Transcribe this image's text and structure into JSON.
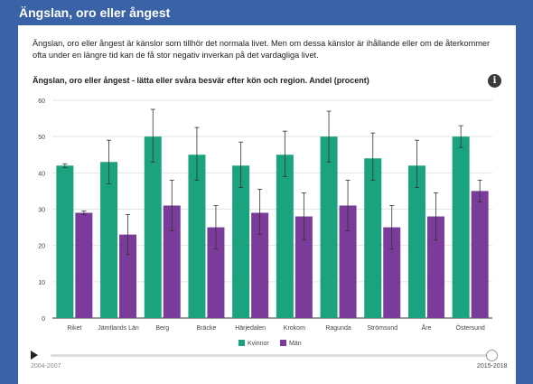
{
  "page": {
    "title": "Ängslan, oro eller ångest",
    "intro": "Ängslan, oro eller ångest är känslor som tillhör det normala livet. Men om dessa känslor är ihållande eller om de återkommer ofta under en längre tid kan de få stor negativ inverkan på det vardagliga livet."
  },
  "info_icon": "info-icon",
  "timeline": {
    "start_label": "2004-2007",
    "end_label": "2015-2018",
    "position": 1.0
  },
  "colors": {
    "kvinnor": "#1aa37e",
    "man": "#7b3b9a"
  },
  "chart_data": {
    "type": "bar",
    "title": "Ängslan, oro eller ångest - lätta eller svåra besvär efter kön och region. Andel (procent)",
    "categories": [
      "Riket",
      "Jämtlands Län",
      "Berg",
      "Bräcke",
      "Härjedalen",
      "Krokom",
      "Ragunda",
      "Strömsund",
      "Åre",
      "Östersund"
    ],
    "series": [
      {
        "name": "Kvinnor",
        "values": [
          42,
          43,
          50,
          45,
          42,
          45,
          50,
          44,
          42,
          50
        ],
        "error_low": [
          41.5,
          37,
          43,
          38,
          36,
          39,
          43,
          38,
          36,
          47
        ],
        "error_high": [
          42.5,
          49,
          57.5,
          52.5,
          48.5,
          51.5,
          57,
          51,
          49,
          53
        ]
      },
      {
        "name": "Män",
        "values": [
          29,
          23,
          31,
          25,
          29,
          28,
          31,
          25,
          28,
          35
        ],
        "error_low": [
          28.5,
          17.5,
          24,
          19,
          23,
          21.5,
          24,
          19,
          21.5,
          32
        ],
        "error_high": [
          29.5,
          28.5,
          38,
          31,
          35.5,
          34.5,
          38,
          31,
          34.5,
          38
        ]
      }
    ],
    "yticks": [
      "0",
      "10",
      "20",
      "30",
      "40",
      "50",
      "60"
    ],
    "ylim": [
      0,
      60
    ],
    "grid": true,
    "legend_position": "bottom"
  }
}
